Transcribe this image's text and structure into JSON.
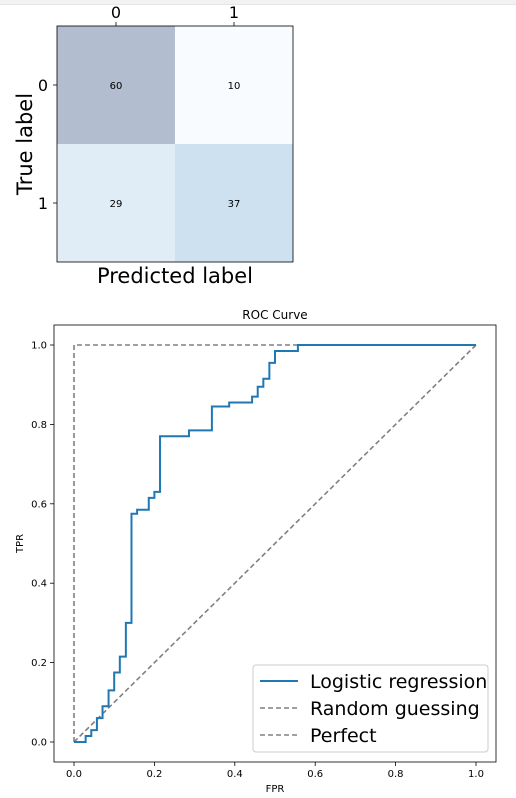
{
  "chart_data": [
    {
      "type": "heatmap",
      "title": "",
      "xlabel": "Predicted label",
      "ylabel": "True label",
      "x_categories": [
        "0",
        "1"
      ],
      "y_categories": [
        "0",
        "1"
      ],
      "values": [
        [
          60,
          10
        ],
        [
          29,
          37
        ]
      ],
      "cell_labels": [
        [
          "60",
          "10"
        ],
        [
          "29",
          "37"
        ]
      ],
      "colormap": "Blues",
      "alpha": 0.3,
      "colors": [
        [
          "#b2bed0",
          "#f8fbff"
        ],
        [
          "#e0ecf6",
          "#cde1f0"
        ]
      ],
      "x_ticks_position": "top"
    },
    {
      "type": "line",
      "title": "ROC Curve",
      "xlabel": "FPR",
      "ylabel": "TPR",
      "xlim": [
        0,
        1
      ],
      "ylim": [
        0,
        1
      ],
      "xticks": [
        "0.0",
        "0.2",
        "0.4",
        "0.6",
        "0.8",
        "1.0"
      ],
      "yticks": [
        "0.0",
        "0.2",
        "0.4",
        "0.6",
        "0.8",
        "1.0"
      ],
      "grid": false,
      "legend": "lower-right",
      "series": [
        {
          "name": "Logistic regression",
          "color": "#1f77b4",
          "style": "solid",
          "step": true,
          "x": [
            0.0,
            0.0,
            0.029,
            0.029,
            0.043,
            0.043,
            0.057,
            0.057,
            0.071,
            0.071,
            0.086,
            0.086,
            0.1,
            0.1,
            0.114,
            0.114,
            0.129,
            0.129,
            0.143,
            0.143,
            0.157,
            0.157,
            0.186,
            0.186,
            0.2,
            0.2,
            0.214,
            0.214,
            0.286,
            0.286,
            0.343,
            0.343,
            0.386,
            0.386,
            0.443,
            0.443,
            0.457,
            0.457,
            0.471,
            0.471,
            0.486,
            0.486,
            0.5,
            0.5,
            0.557,
            0.557,
            1.0
          ],
          "y": [
            0.0,
            0.0,
            0.0,
            0.015,
            0.015,
            0.03,
            0.03,
            0.06,
            0.06,
            0.09,
            0.09,
            0.13,
            0.13,
            0.175,
            0.175,
            0.215,
            0.215,
            0.3,
            0.3,
            0.575,
            0.575,
            0.585,
            0.585,
            0.615,
            0.615,
            0.63,
            0.63,
            0.77,
            0.77,
            0.785,
            0.785,
            0.845,
            0.845,
            0.855,
            0.855,
            0.87,
            0.87,
            0.895,
            0.895,
            0.915,
            0.915,
            0.955,
            0.955,
            0.985,
            0.985,
            1.0,
            1.0
          ]
        },
        {
          "name": "Random guessing",
          "color": "#808080",
          "style": "dashed",
          "x": [
            0.0,
            1.0
          ],
          "y": [
            0.0,
            1.0
          ]
        },
        {
          "name": "Perfect",
          "color": "#808080",
          "style": "dashed",
          "x": [
            0.0,
            0.0,
            1.0
          ],
          "y": [
            0.0,
            1.0,
            1.0
          ]
        }
      ]
    }
  ]
}
